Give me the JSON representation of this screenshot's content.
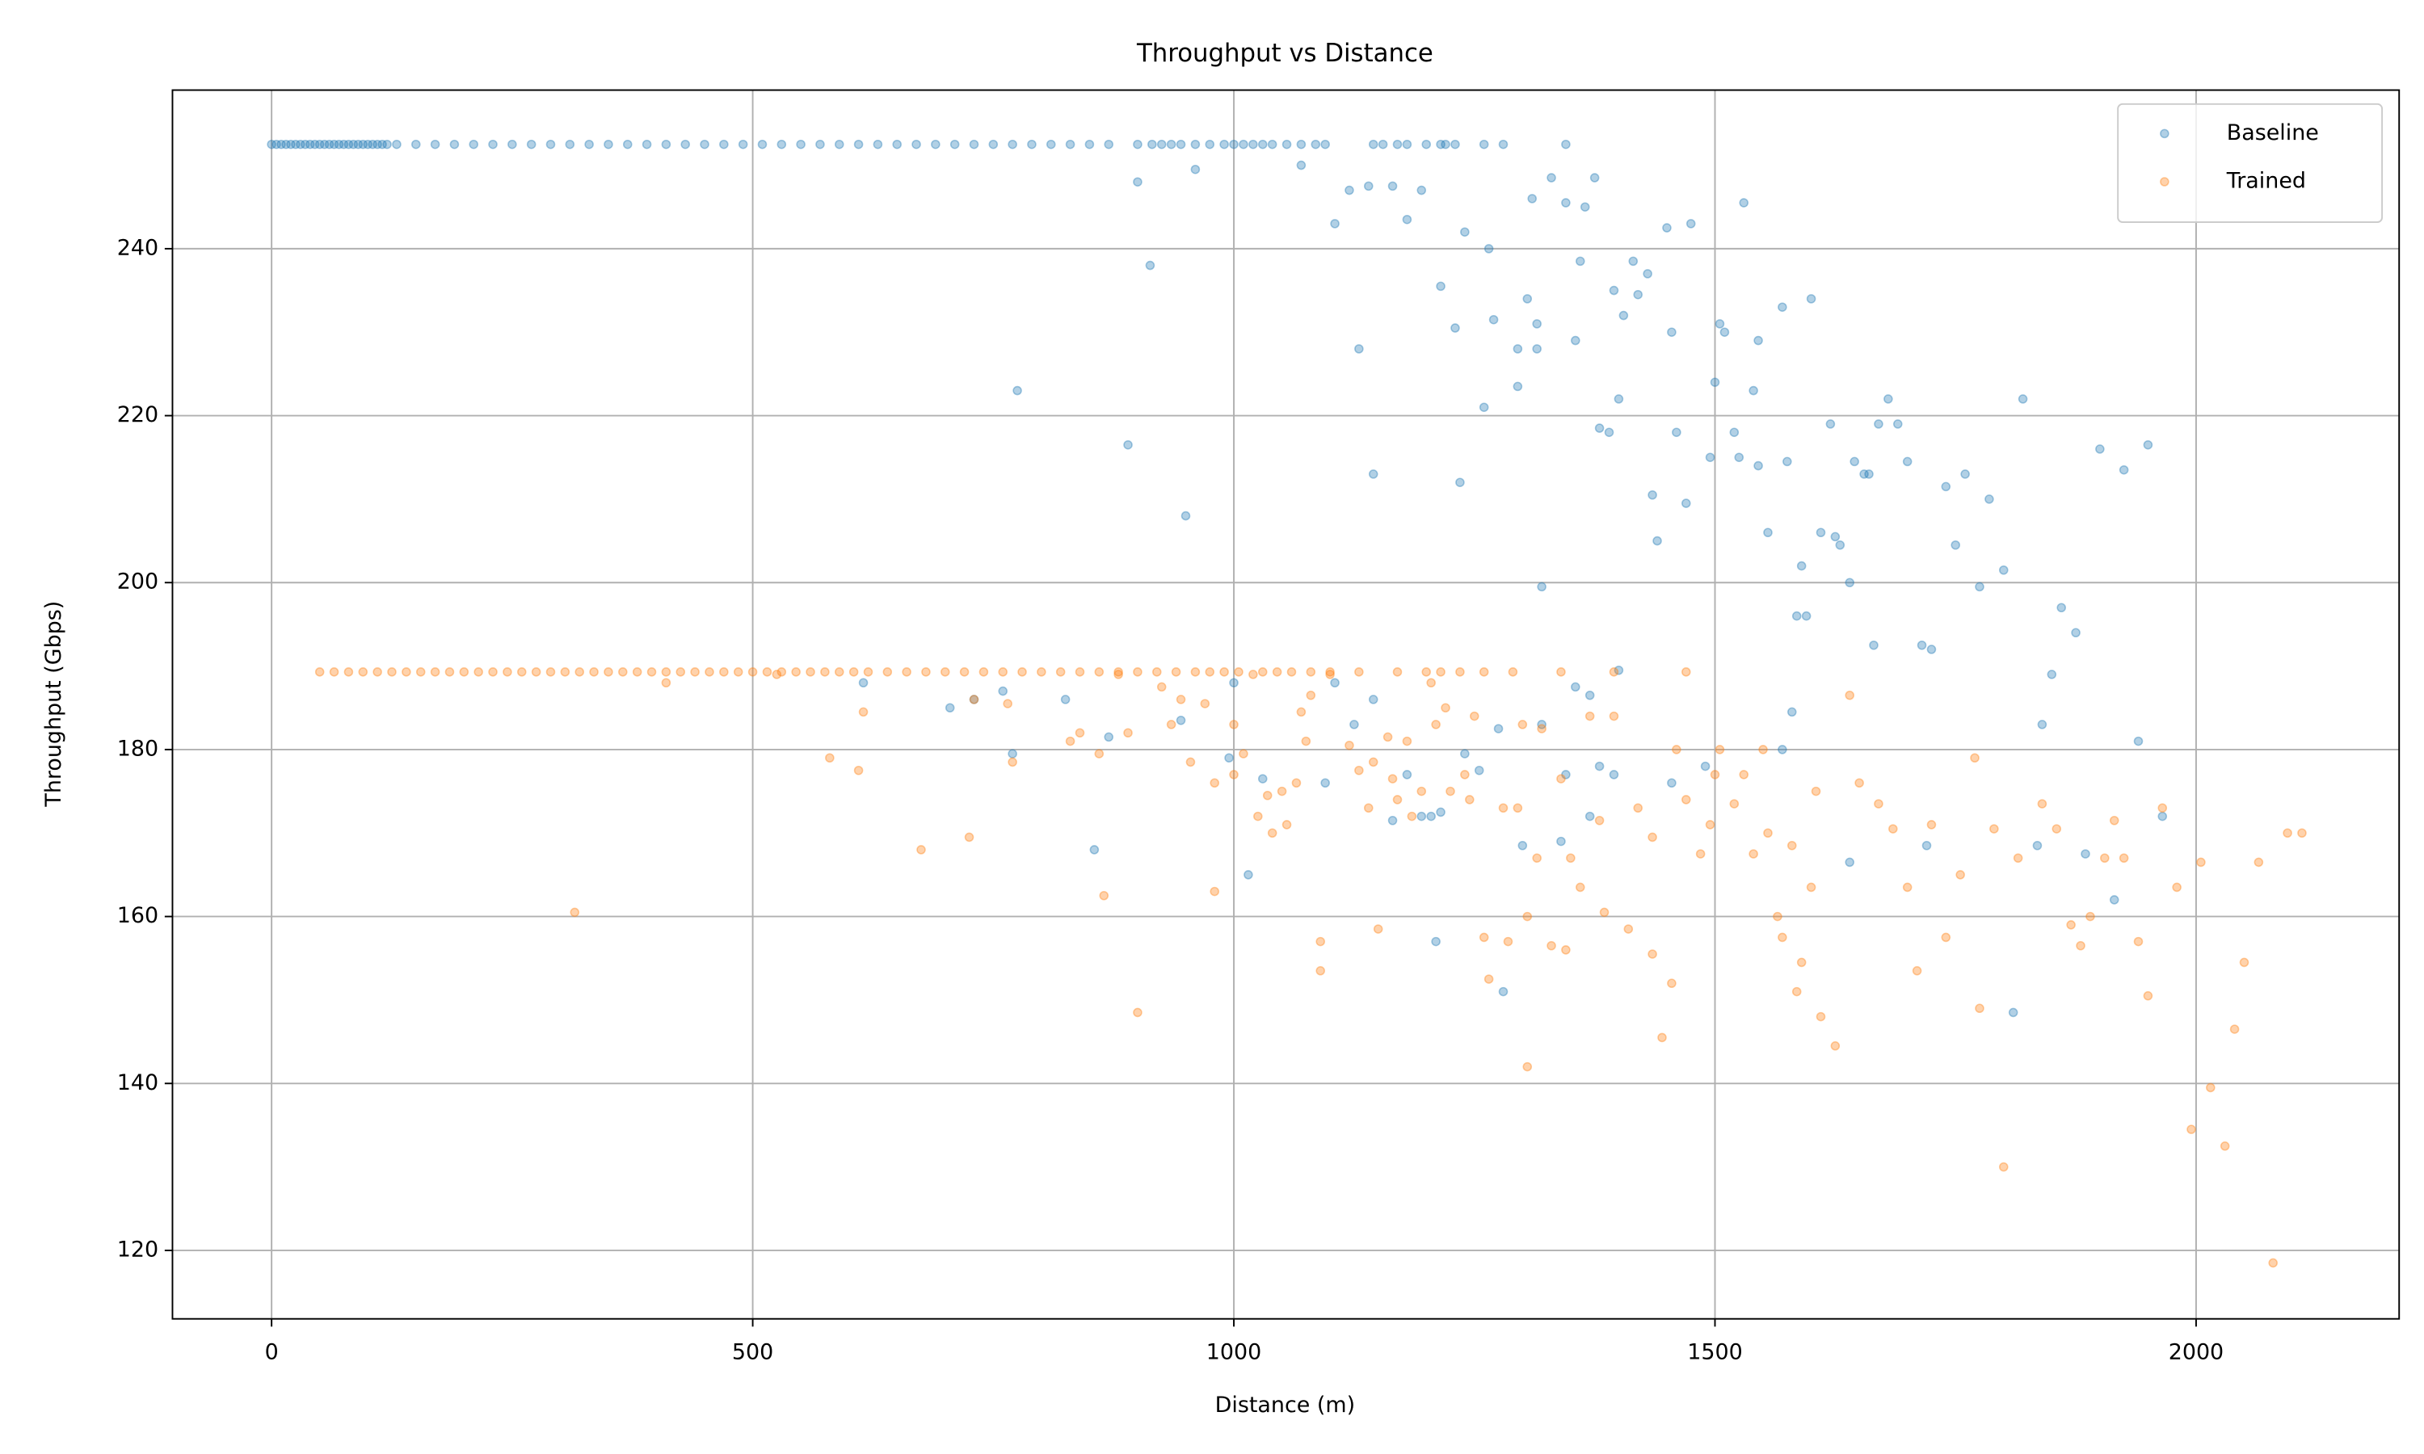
{
  "chart_data": {
    "type": "scatter",
    "title": "Throughput vs Distance",
    "x_label": "Distance (m)",
    "y_label": "Throughput (Gbps)",
    "xlim": [
      -103,
      2211
    ],
    "ylim": [
      111.8,
      259
    ],
    "xticks": [
      0,
      500,
      1000,
      1500,
      2000
    ],
    "yticks": [
      120,
      140,
      160,
      180,
      200,
      220,
      240
    ],
    "grid": true,
    "legend": "upper right",
    "series": [
      {
        "name": "Baseline",
        "color": "#1f77b4",
        "x": [
          0,
          5,
          10,
          15,
          20,
          25,
          30,
          35,
          40,
          45,
          50,
          55,
          60,
          65,
          70,
          75,
          80,
          85,
          90,
          95,
          100,
          105,
          110,
          115,
          120,
          130,
          150,
          170,
          190,
          210,
          230,
          250,
          270,
          290,
          310,
          330,
          350,
          370,
          390,
          410,
          430,
          450,
          470,
          490,
          510,
          530,
          550,
          570,
          590,
          610,
          630,
          650,
          670,
          690,
          710,
          730,
          750,
          770,
          790,
          810,
          830,
          850,
          870,
          900,
          915,
          925,
          935,
          945,
          960,
          975,
          990,
          1000,
          1010,
          1020,
          1030,
          1040,
          1055,
          1070,
          1085,
          1095,
          1145,
          1155,
          1170,
          1180,
          1200,
          1215,
          1220,
          1230,
          1260,
          1280,
          1345,
          900,
          913,
          960,
          1070,
          1105,
          1120,
          1140,
          1165,
          1180,
          1195,
          1240,
          1265,
          1310,
          1330,
          1345,
          1365,
          1375,
          1450,
          1475,
          1530,
          1215,
          1305,
          1360,
          1395,
          1415,
          1430,
          1420,
          1405,
          1505,
          1510,
          1545,
          1570,
          1600,
          1230,
          1270,
          1315,
          1355,
          1455,
          1130,
          1295,
          1315,
          1500,
          1540,
          775,
          1260,
          1295,
          1400,
          1620,
          1680,
          1820,
          1380,
          1390,
          1460,
          1520,
          1670,
          1690,
          890,
          1145,
          1235,
          1525,
          1495,
          1545,
          1575,
          1645,
          1655,
          1660,
          1700,
          1740,
          1760,
          1785,
          1900,
          1925,
          1950,
          1435,
          1470,
          950,
          1440,
          1555,
          1610,
          1625,
          1630,
          1750,
          1800,
          1320,
          1640,
          1590,
          1775,
          1585,
          1595,
          1860,
          1875,
          1665,
          1715,
          1725,
          1850,
          1355,
          1370,
          1400,
          1580,
          1840,
          615,
          705,
          730,
          760,
          770,
          825,
          870,
          945,
          995,
          1000,
          1105,
          1125,
          1145,
          1180,
          1205,
          1215,
          1240,
          1255,
          1275,
          1320,
          1345,
          1370,
          1380,
          1395,
          1455,
          1490,
          1570,
          1720,
          1835,
          1885,
          1915,
          1940,
          1965,
          1030,
          1015,
          855,
          1300,
          1340,
          1640,
          1210,
          1280,
          1810,
          1095,
          1165,
          1195
        ],
        "values": [
          252.5,
          252.5,
          252.5,
          252.5,
          252.5,
          252.5,
          252.5,
          252.5,
          252.5,
          252.5,
          252.5,
          252.5,
          252.5,
          252.5,
          252.5,
          252.5,
          252.5,
          252.5,
          252.5,
          252.5,
          252.5,
          252.5,
          252.5,
          252.5,
          252.5,
          252.5,
          252.5,
          252.5,
          252.5,
          252.5,
          252.5,
          252.5,
          252.5,
          252.5,
          252.5,
          252.5,
          252.5,
          252.5,
          252.5,
          252.5,
          252.5,
          252.5,
          252.5,
          252.5,
          252.5,
          252.5,
          252.5,
          252.5,
          252.5,
          252.5,
          252.5,
          252.5,
          252.5,
          252.5,
          252.5,
          252.5,
          252.5,
          252.5,
          252.5,
          252.5,
          252.5,
          252.5,
          252.5,
          252.5,
          252.5,
          252.5,
          252.5,
          252.5,
          252.5,
          252.5,
          252.5,
          252.5,
          252.5,
          252.5,
          252.5,
          252.5,
          252.5,
          252.5,
          252.5,
          252.5,
          252.5,
          252.5,
          252.5,
          252.5,
          252.5,
          252.5,
          252.5,
          252.5,
          252.5,
          252.5,
          252.5,
          248,
          238,
          249.5,
          250,
          243,
          247,
          247.5,
          247.5,
          243.5,
          247,
          242,
          240,
          246,
          248.5,
          245.5,
          245,
          248.5,
          242.5,
          243,
          245.5,
          235.5,
          234,
          238.5,
          235,
          238.5,
          237,
          234.5,
          232,
          231,
          230,
          229,
          233,
          234,
          230.5,
          231.5,
          231,
          229,
          230,
          228,
          228,
          228,
          224,
          223,
          223,
          221,
          223.5,
          222,
          219,
          222,
          222,
          218.5,
          218,
          218,
          218,
          219,
          219,
          216.5,
          213,
          212,
          215,
          215,
          214,
          214.5,
          214.5,
          213,
          213,
          214.5,
          211.5,
          213,
          210,
          216,
          213.5,
          216.5,
          210.5,
          209.5,
          208,
          205,
          206,
          206,
          205.5,
          204.5,
          204.5,
          201.5,
          199.5,
          200,
          202,
          199.5,
          196,
          196,
          197,
          194,
          192.5,
          192.5,
          192,
          189,
          187.5,
          186.5,
          189.5,
          184.5,
          183,
          188,
          185,
          186,
          187,
          179.5,
          186,
          181.5,
          183.5,
          179,
          188,
          188,
          183,
          186,
          177,
          172,
          172.5,
          179.5,
          177.5,
          182.5,
          183,
          177,
          172,
          178,
          177,
          176,
          178,
          180,
          168.5,
          168.5,
          167.5,
          162,
          181,
          172,
          176.5,
          165,
          168,
          168.5,
          169,
          166.5,
          157,
          151,
          148.5,
          176,
          171.5,
          172
        ]
      },
      {
        "name": "Trained",
        "color": "#ff7f0e",
        "x": [
          50,
          65,
          80,
          95,
          110,
          125,
          140,
          155,
          170,
          185,
          200,
          215,
          230,
          245,
          260,
          275,
          290,
          305,
          320,
          335,
          350,
          365,
          380,
          395,
          410,
          425,
          440,
          455,
          470,
          485,
          500,
          515,
          530,
          545,
          560,
          575,
          590,
          605,
          620,
          640,
          660,
          680,
          700,
          720,
          740,
          760,
          780,
          800,
          820,
          840,
          860,
          880,
          900,
          920,
          940,
          960,
          975,
          990,
          1005,
          1030,
          1045,
          1060,
          1080,
          1100,
          1130,
          1170,
          1200,
          1215,
          1235,
          1260,
          1290,
          1340,
          1395,
          1470,
          315,
          410,
          525,
          580,
          610,
          615,
          675,
          725,
          730,
          765,
          770,
          830,
          840,
          860,
          865,
          880,
          890,
          900,
          925,
          935,
          945,
          955,
          970,
          980,
          980,
          1000,
          1000,
          1010,
          1020,
          1025,
          1035,
          1040,
          1050,
          1055,
          1065,
          1070,
          1075,
          1080,
          1090,
          1090,
          1100,
          1120,
          1130,
          1140,
          1145,
          1150,
          1160,
          1165,
          1170,
          1180,
          1185,
          1195,
          1205,
          1210,
          1220,
          1225,
          1240,
          1245,
          1250,
          1260,
          1265,
          1280,
          1285,
          1295,
          1300,
          1305,
          1305,
          1315,
          1320,
          1330,
          1340,
          1345,
          1350,
          1360,
          1370,
          1380,
          1385,
          1395,
          1410,
          1420,
          1435,
          1435,
          1445,
          1455,
          1460,
          1470,
          1485,
          1495,
          1500,
          1505,
          1520,
          1530,
          1540,
          1550,
          1555,
          1565,
          1570,
          1580,
          1585,
          1590,
          1600,
          1605,
          1610,
          1625,
          1640,
          1650,
          1670,
          1685,
          1700,
          1710,
          1725,
          1740,
          1755,
          1770,
          1775,
          1790,
          1800,
          1815,
          1840,
          1855,
          1870,
          1880,
          1890,
          1905,
          1915,
          1925,
          1940,
          1950,
          1965,
          1980,
          1995,
          2005,
          2015,
          2030,
          2040,
          2050,
          2065,
          2080,
          2095,
          2110
        ],
        "values": [
          189.3,
          189.3,
          189.3,
          189.3,
          189.3,
          189.3,
          189.3,
          189.3,
          189.3,
          189.3,
          189.3,
          189.3,
          189.3,
          189.3,
          189.3,
          189.3,
          189.3,
          189.3,
          189.3,
          189.3,
          189.3,
          189.3,
          189.3,
          189.3,
          189.3,
          189.3,
          189.3,
          189.3,
          189.3,
          189.3,
          189.3,
          189.3,
          189.3,
          189.3,
          189.3,
          189.3,
          189.3,
          189.3,
          189.3,
          189.3,
          189.3,
          189.3,
          189.3,
          189.3,
          189.3,
          189.3,
          189.3,
          189.3,
          189.3,
          189.3,
          189.3,
          189.3,
          189.3,
          189.3,
          189.3,
          189.3,
          189.3,
          189.3,
          189.3,
          189.3,
          189.3,
          189.3,
          189.3,
          189.3,
          189.3,
          189.3,
          189.3,
          189.3,
          189.3,
          189.3,
          189.3,
          189.3,
          189.3,
          189.3,
          160.5,
          188,
          189,
          179,
          177.5,
          184.5,
          168,
          169.5,
          186,
          185.5,
          178.5,
          181,
          182,
          179.5,
          162.5,
          189,
          182,
          148.5,
          187.5,
          183,
          186,
          178.5,
          185.5,
          176,
          163,
          183,
          177,
          179.5,
          189,
          172,
          174.5,
          170,
          175,
          171,
          176,
          184.5,
          181,
          186.5,
          157,
          153.5,
          189,
          180.5,
          177.5,
          173,
          178.5,
          158.5,
          181.5,
          176.5,
          174,
          181,
          172,
          175,
          188,
          183,
          185,
          175,
          177,
          174,
          184,
          157.5,
          152.5,
          173,
          157,
          173,
          183,
          160,
          142,
          167,
          182.5,
          156.5,
          176.5,
          156,
          167,
          163.5,
          184,
          171.5,
          160.5,
          184,
          158.5,
          173,
          169.5,
          155.5,
          145.5,
          152,
          180,
          174,
          167.5,
          171,
          177,
          180,
          173.5,
          177,
          167.5,
          180,
          170,
          160,
          157.5,
          168.5,
          151,
          154.5,
          163.5,
          175,
          148,
          144.5,
          186.5,
          176,
          173.5,
          170.5,
          163.5,
          153.5,
          171,
          157.5,
          165,
          179,
          149,
          170.5,
          130,
          167,
          173.5,
          170.5,
          159,
          156.5,
          160,
          167,
          171.5,
          167,
          157,
          150.5,
          173,
          163.5,
          134.5,
          166.5,
          139.5,
          132.5,
          146.5,
          154.5,
          166.5,
          118.5,
          170,
          170
        ]
      }
    ]
  }
}
